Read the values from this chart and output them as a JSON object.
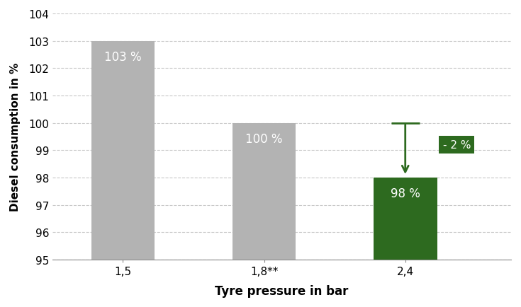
{
  "categories": [
    "1,5",
    "1,8**",
    "2,4"
  ],
  "values": [
    103,
    100,
    98
  ],
  "bar_colors": [
    "#b3b3b3",
    "#b3b3b3",
    "#2d6a1f"
  ],
  "bar_labels": [
    "103 %",
    "100 %",
    "98 %"
  ],
  "label_color": "#ffffff",
  "xlabel": "Tyre pressure in bar",
  "ylabel": "Diesel consumption in %",
  "ylim": [
    95,
    104
  ],
  "yticks": [
    95,
    96,
    97,
    98,
    99,
    100,
    101,
    102,
    103,
    104
  ],
  "annotation_text": "- 2 %",
  "annotation_box_color": "#2d6a1f",
  "annotation_text_color": "#ffffff",
  "arrow_color": "#2d6a1f",
  "background_color": "#ffffff",
  "grid_color": "#c8c8c8",
  "xlabel_fontsize": 12,
  "ylabel_fontsize": 11,
  "bar_label_fontsize": 12,
  "tick_fontsize": 11,
  "bar_width": 0.45,
  "xlim": [
    -0.5,
    2.75
  ]
}
